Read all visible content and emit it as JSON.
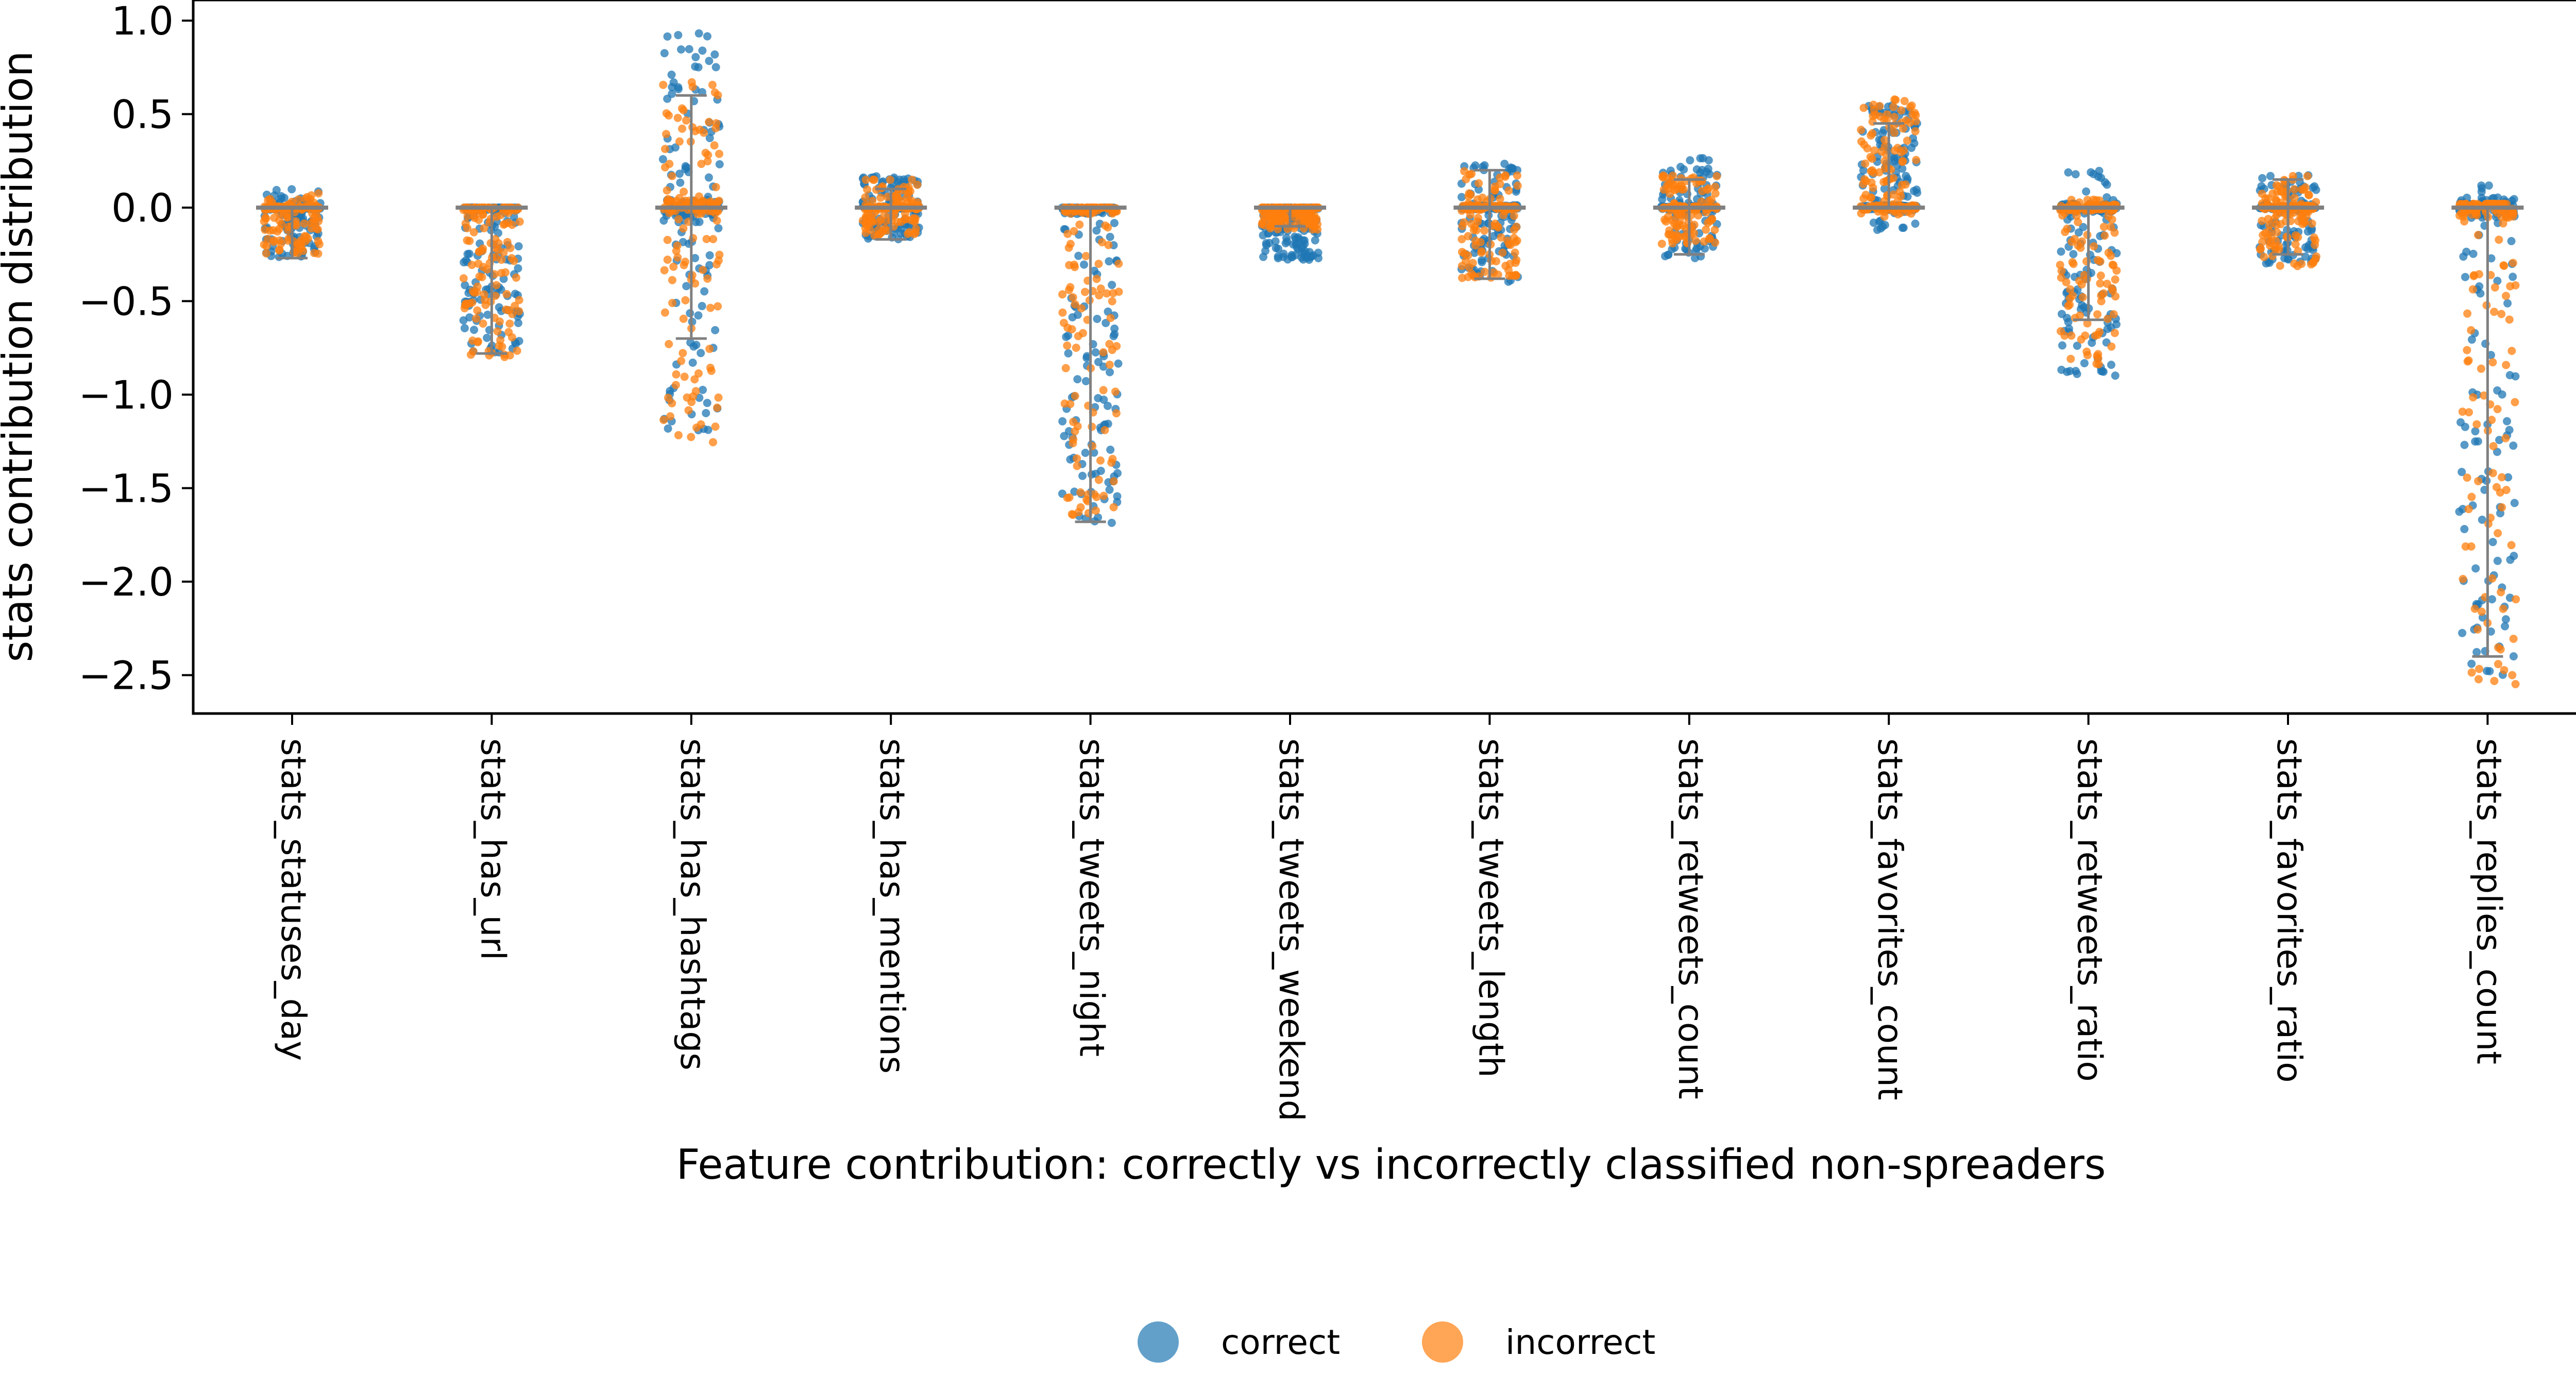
{
  "chart_data": {
    "type": "scatter",
    "subtype": "strip plot with box overlay",
    "title": "",
    "xlabel": "Feature contribution: correctly vs incorrectly classified non-spreaders",
    "ylabel": "stats contribution distribution",
    "ylim": [
      -2.7,
      1.1
    ],
    "yticks": [
      1.0,
      0.5,
      0.0,
      -0.5,
      -1.0,
      -1.5,
      -2.0,
      -2.5
    ],
    "ytick_labels": [
      "1.0",
      "0.5",
      "0.0",
      "−0.5",
      "−1.0",
      "−1.5",
      "−2.0",
      "−2.5"
    ],
    "grid": false,
    "legend_position": "bottom-center",
    "categories": [
      "stats_statuses_day",
      "stats_has_url",
      "stats_has_hashtags",
      "stats_has_mentions",
      "stats_tweets_night",
      "stats_tweets_weekend",
      "stats_tweets_length",
      "stats_retweets_count",
      "stats_favorites_count",
      "stats_retweets_ratio",
      "stats_favorites_ratio",
      "stats_replies_count"
    ],
    "series": [
      {
        "name": "correct",
        "color": "#1f77b4",
        "min": [
          -0.27,
          -0.78,
          -1.22,
          -0.17,
          -1.7,
          -0.28,
          -0.4,
          -0.27,
          -0.12,
          -0.9,
          -0.3,
          -2.5
        ],
        "median": [
          0.0,
          0.0,
          0.0,
          0.0,
          0.0,
          0.0,
          0.0,
          0.0,
          0.0,
          0.0,
          0.0,
          0.0
        ],
        "max": [
          0.1,
          0.0,
          0.95,
          0.17,
          0.0,
          0.0,
          0.25,
          0.27,
          0.55,
          0.2,
          0.18,
          0.22
        ]
      },
      {
        "name": "incorrect",
        "color": "#ff7f0e",
        "min": [
          -0.25,
          -0.8,
          -1.26,
          -0.15,
          -1.68,
          -0.12,
          -0.38,
          -0.2,
          -0.05,
          -0.85,
          -0.32,
          -2.55
        ],
        "median": [
          0.0,
          0.0,
          0.0,
          0.0,
          0.0,
          0.0,
          0.0,
          0.0,
          0.0,
          0.0,
          0.0,
          0.0
        ],
        "max": [
          0.08,
          0.0,
          0.7,
          0.15,
          0.0,
          0.0,
          0.2,
          0.18,
          0.58,
          0.05,
          0.18,
          0.02
        ]
      }
    ],
    "box": {
      "whisker_low": [
        -0.27,
        -0.78,
        -0.7,
        -0.17,
        -1.68,
        -0.1,
        -0.38,
        -0.25,
        0.0,
        -0.6,
        -0.25,
        -2.4
      ],
      "whisker_high": [
        0.0,
        0.0,
        0.6,
        0.1,
        0.0,
        0.0,
        0.2,
        0.15,
        0.45,
        0.0,
        0.15,
        0.0
      ]
    }
  },
  "legend": {
    "items": [
      {
        "label": "correct",
        "color": "#1f77b4"
      },
      {
        "label": "incorrect",
        "color": "#ff7f0e"
      }
    ]
  }
}
